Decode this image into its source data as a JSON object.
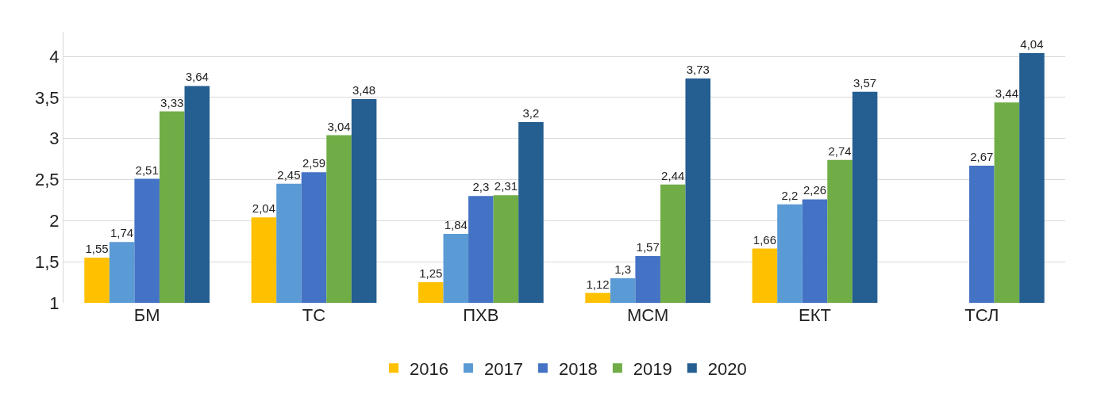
{
  "chart_data": {
    "type": "bar",
    "categories": [
      "БМ",
      "ТС",
      "ПХВ",
      "МСМ",
      "ЕКТ",
      "ТСЛ"
    ],
    "series": [
      {
        "name": "2016",
        "color": "#ffc000",
        "values": [
          1.55,
          2.04,
          1.25,
          1.12,
          1.66,
          null
        ],
        "value_labels": [
          "1,55",
          "2,04",
          "1,25",
          "1,12",
          "1,66",
          null
        ]
      },
      {
        "name": "2017",
        "color": "#5b9bd5",
        "values": [
          1.74,
          2.45,
          1.84,
          1.3,
          2.2,
          null
        ],
        "value_labels": [
          "1,74",
          "2,45",
          "1,84",
          "1,3",
          "2,2",
          null
        ]
      },
      {
        "name": "2018",
        "color": "#4472c4",
        "values": [
          2.51,
          2.59,
          2.3,
          1.57,
          2.26,
          2.67
        ],
        "value_labels": [
          "2,51",
          "2,59",
          "2,3",
          "1,57",
          "2,26",
          "2,67"
        ]
      },
      {
        "name": "2019",
        "color": "#70ad47",
        "values": [
          3.33,
          3.04,
          2.31,
          2.44,
          2.74,
          3.44
        ],
        "value_labels": [
          "3,33",
          "3,04",
          "2,31",
          "2,44",
          "2,74",
          "3,44"
        ]
      },
      {
        "name": "2020",
        "color": "#255e91",
        "values": [
          3.64,
          3.48,
          3.2,
          3.73,
          3.57,
          4.04
        ],
        "value_labels": [
          "3,64",
          "3,48",
          "3,2",
          "3,73",
          "3,57",
          "4,04"
        ]
      }
    ],
    "ylim": [
      1,
      4.3
    ],
    "yticks": [
      1,
      {
        "value": 1.5,
        "label": "1,5"
      },
      2,
      {
        "value": 2.5,
        "label": "2,5"
      },
      3,
      {
        "value": 3.5,
        "label": "3,5"
      },
      4
    ],
    "grid": "y",
    "legend": "bottom"
  }
}
